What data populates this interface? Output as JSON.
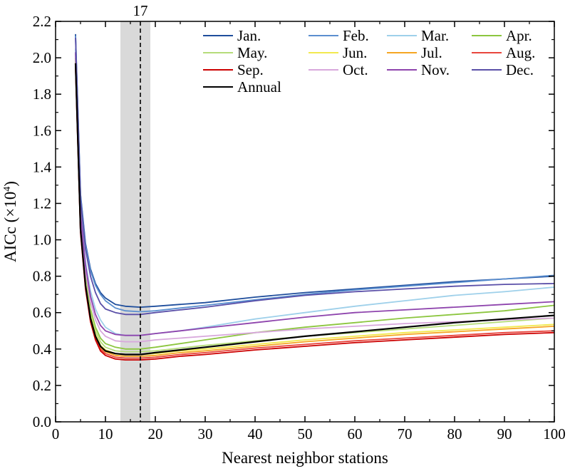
{
  "chart_data": {
    "type": "line",
    "xlabel": "Nearest neighbor stations",
    "ylabel_main": "AICc (×10",
    "ylabel_exp": "4",
    "ylabel_close": ")",
    "xlim": [
      0,
      100
    ],
    "ylim": [
      0.0,
      2.2
    ],
    "x_ticks": [
      0,
      10,
      20,
      30,
      40,
      50,
      60,
      70,
      80,
      90,
      100
    ],
    "x_tick_labels": [
      "0",
      "10",
      "20",
      "30",
      "40",
      "50",
      "60",
      "70",
      "80",
      "90",
      "100"
    ],
    "y_ticks": [
      0,
      0.2,
      0.4,
      0.6,
      0.8,
      1.0,
      1.2,
      1.4,
      1.6,
      1.8,
      2.0,
      2.2
    ],
    "y_tick_labels": [
      "0.0",
      "0.2",
      "0.4",
      "0.6",
      "0.8",
      "1.0",
      "1.2",
      "1.4",
      "1.6",
      "1.8",
      "2.0",
      "2.2"
    ],
    "grid": false,
    "legend_position": "top-right",
    "annotation": {
      "label": "17",
      "x": 17
    },
    "shaded_range": [
      13,
      19
    ],
    "x": [
      4,
      5,
      6,
      7,
      8,
      9,
      10,
      12,
      14,
      17,
      20,
      25,
      30,
      40,
      50,
      60,
      70,
      80,
      90,
      100
    ],
    "series": [
      {
        "name": "Jan.",
        "color": "#1f4e9c",
        "values": [
          2.13,
          1.25,
          0.98,
          0.84,
          0.76,
          0.71,
          0.68,
          0.645,
          0.635,
          0.63,
          0.635,
          0.645,
          0.655,
          0.685,
          0.71,
          0.73,
          0.75,
          0.77,
          0.785,
          0.8
        ]
      },
      {
        "name": "Feb.",
        "color": "#5b8fcf",
        "values": [
          2.12,
          1.24,
          0.97,
          0.83,
          0.75,
          0.7,
          0.665,
          0.625,
          0.61,
          0.605,
          0.61,
          0.625,
          0.64,
          0.67,
          0.7,
          0.725,
          0.745,
          0.765,
          0.785,
          0.805
        ]
      },
      {
        "name": "Mar.",
        "color": "#9ed0ea",
        "values": [
          2.05,
          1.16,
          0.88,
          0.72,
          0.62,
          0.56,
          0.52,
          0.485,
          0.475,
          0.475,
          0.485,
          0.5,
          0.52,
          0.565,
          0.6,
          0.635,
          0.665,
          0.695,
          0.715,
          0.74
        ]
      },
      {
        "name": "Apr.",
        "color": "#8cc63f",
        "values": [
          2.0,
          1.1,
          0.8,
          0.62,
          0.52,
          0.46,
          0.43,
          0.41,
          0.4,
          0.4,
          0.41,
          0.43,
          0.45,
          0.49,
          0.52,
          0.545,
          0.57,
          0.59,
          0.61,
          0.64
        ]
      },
      {
        "name": "May.",
        "color": "#b5dc7a",
        "values": [
          1.99,
          1.09,
          0.78,
          0.6,
          0.5,
          0.44,
          0.41,
          0.39,
          0.385,
          0.385,
          0.39,
          0.405,
          0.42,
          0.445,
          0.47,
          0.49,
          0.51,
          0.53,
          0.55,
          0.57
        ]
      },
      {
        "name": "Jun.",
        "color": "#f2e94e",
        "values": [
          1.98,
          1.07,
          0.76,
          0.58,
          0.48,
          0.42,
          0.395,
          0.375,
          0.37,
          0.37,
          0.375,
          0.39,
          0.4,
          0.425,
          0.45,
          0.47,
          0.49,
          0.505,
          0.52,
          0.535
        ]
      },
      {
        "name": "Jul.",
        "color": "#f5a623",
        "values": [
          1.97,
          1.06,
          0.75,
          0.57,
          0.47,
          0.41,
          0.385,
          0.365,
          0.36,
          0.36,
          0.365,
          0.38,
          0.39,
          0.415,
          0.44,
          0.46,
          0.48,
          0.495,
          0.51,
          0.525
        ]
      },
      {
        "name": "Aug.",
        "color": "#e8453c",
        "values": [
          1.96,
          1.05,
          0.74,
          0.56,
          0.46,
          0.4,
          0.375,
          0.355,
          0.35,
          0.35,
          0.355,
          0.37,
          0.38,
          0.405,
          0.425,
          0.445,
          0.46,
          0.475,
          0.49,
          0.5
        ]
      },
      {
        "name": "Sep.",
        "color": "#cc0000",
        "values": [
          1.95,
          1.04,
          0.73,
          0.55,
          0.45,
          0.39,
          0.365,
          0.345,
          0.34,
          0.34,
          0.345,
          0.36,
          0.37,
          0.395,
          0.415,
          0.435,
          0.45,
          0.465,
          0.48,
          0.49
        ]
      },
      {
        "name": "Oct.",
        "color": "#d8a8dc",
        "values": [
          2.02,
          1.12,
          0.83,
          0.66,
          0.56,
          0.5,
          0.47,
          0.445,
          0.44,
          0.44,
          0.45,
          0.46,
          0.47,
          0.49,
          0.51,
          0.525,
          0.54,
          0.55,
          0.56,
          0.57
        ]
      },
      {
        "name": "Nov.",
        "color": "#8e44ad",
        "values": [
          2.03,
          1.14,
          0.86,
          0.69,
          0.59,
          0.53,
          0.5,
          0.48,
          0.475,
          0.475,
          0.485,
          0.5,
          0.515,
          0.545,
          0.575,
          0.6,
          0.615,
          0.63,
          0.645,
          0.66
        ]
      },
      {
        "name": "Dec.",
        "color": "#5a4fa8",
        "values": [
          2.11,
          1.22,
          0.95,
          0.8,
          0.71,
          0.65,
          0.62,
          0.6,
          0.59,
          0.59,
          0.6,
          0.615,
          0.63,
          0.665,
          0.695,
          0.715,
          0.73,
          0.745,
          0.755,
          0.76
        ]
      },
      {
        "name": "Annual",
        "color": "#000000",
        "values": [
          1.97,
          1.06,
          0.75,
          0.57,
          0.47,
          0.415,
          0.39,
          0.375,
          0.37,
          0.37,
          0.38,
          0.395,
          0.41,
          0.44,
          0.47,
          0.495,
          0.52,
          0.545,
          0.565,
          0.585
        ]
      }
    ]
  }
}
